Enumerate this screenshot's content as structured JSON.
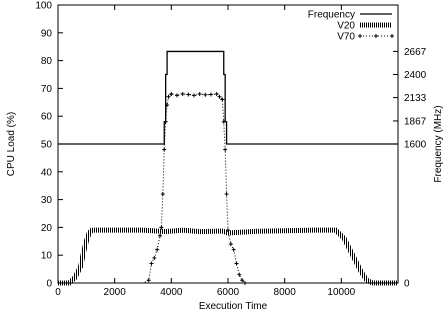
{
  "chart_data": {
    "type": "line",
    "xlabel": "Execution Time",
    "ylabel": "CPU Load (%)",
    "y2label": "Frequency (MHz)",
    "xlim": [
      0,
      12000
    ],
    "ylim": [
      0,
      100
    ],
    "x_ticks": [
      0,
      2000,
      4000,
      6000,
      8000,
      10000
    ],
    "y_ticks": [
      0,
      10,
      20,
      30,
      40,
      50,
      60,
      70,
      80,
      90,
      100
    ],
    "y2_ticks": [
      {
        "label": "0",
        "at": 0
      },
      {
        "label": "1600",
        "at": 50
      },
      {
        "label": "1867",
        "at": 58.3
      },
      {
        "label": "2133",
        "at": 66.7
      },
      {
        "label": "2400",
        "at": 75
      },
      {
        "label": "2667",
        "at": 83.3
      }
    ],
    "grid": false,
    "legend_position": "top-right",
    "series": [
      {
        "name": "Frequency",
        "style": "solid",
        "color": "#000000",
        "x": [
          0,
          3750,
          3750,
          3800,
          3800,
          3850,
          3850,
          5850,
          5850,
          5900,
          5900,
          5950,
          5950,
          12000
        ],
        "y": [
          50,
          50,
          58,
          58,
          75,
          75,
          83.3,
          83.3,
          75,
          75,
          58,
          58,
          50,
          50
        ]
      },
      {
        "name": "V20",
        "style": "hatched",
        "color": "#000000",
        "x": [
          0,
          400,
          600,
          800,
          900,
          1000,
          1100,
          1200,
          2000,
          3000,
          3800,
          4400,
          5000,
          5800,
          6000,
          7000,
          8000,
          9000,
          9800,
          10100,
          10300,
          10500,
          10700,
          10900,
          11100,
          12000
        ],
        "y": [
          0,
          0,
          2,
          6,
          11,
          15,
          18,
          19,
          19,
          19,
          18.5,
          19,
          18.5,
          18.7,
          18,
          18.6,
          18.8,
          19,
          19,
          16,
          12,
          8,
          4,
          1,
          0,
          0
        ]
      },
      {
        "name": "V70",
        "style": "dotted-cross",
        "color": "#000000",
        "x": [
          0,
          500,
          1000,
          1500,
          2000,
          2500,
          3000,
          3200,
          3300,
          3400,
          3500,
          3600,
          3650,
          3700,
          3750,
          3800,
          3850,
          3900,
          4000,
          4200,
          4400,
          4600,
          4800,
          5000,
          5200,
          5400,
          5600,
          5700,
          5800,
          5850,
          5900,
          5950,
          6000,
          6100,
          6200,
          6300,
          6400,
          6500,
          6600,
          7000,
          8000,
          9000,
          10000,
          11000,
          12000
        ],
        "y": [
          0,
          0,
          0,
          0,
          0,
          0,
          0,
          1,
          7,
          9,
          12,
          17,
          20,
          32,
          48,
          58,
          64,
          67,
          68,
          67.5,
          68,
          67.8,
          67.5,
          68,
          67.7,
          67.8,
          68,
          67,
          66,
          58,
          48,
          32,
          19,
          14,
          12,
          7,
          3,
          1,
          0,
          0,
          0,
          0,
          0,
          0,
          0
        ]
      }
    ]
  }
}
